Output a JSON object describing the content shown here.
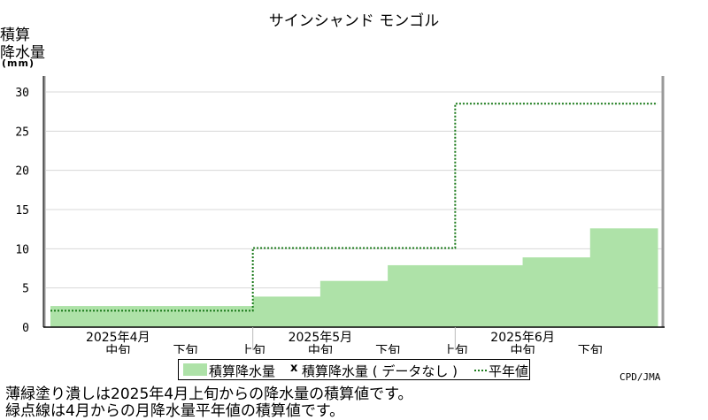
{
  "chart_data": {
    "type": "area",
    "title": "サインシャンド モンゴル",
    "ylabel_lines": [
      "積算",
      "降水量"
    ],
    "yunit": "(mm)",
    "ylim": [
      0,
      30
    ],
    "yticks": [
      0,
      5,
      10,
      15,
      20,
      25,
      30
    ],
    "grid": true,
    "periods": [
      "2025年4月上旬",
      "2025年4月中旬",
      "2025年4月下旬",
      "2025年5月上旬",
      "2025年5月中旬",
      "2025年5月下旬",
      "2025年6月上旬",
      "2025年6月中旬",
      "2025年6月下旬"
    ],
    "x_ticks": [
      {
        "top": "2025年4月",
        "bottom": "中旬"
      },
      {
        "top": "",
        "bottom": "下旬"
      },
      {
        "top": "",
        "bottom": "上旬"
      },
      {
        "top": "2025年5月",
        "bottom": "中旬"
      },
      {
        "top": "",
        "bottom": "下旬"
      },
      {
        "top": "",
        "bottom": "上旬"
      },
      {
        "top": "2025年6月",
        "bottom": "中旬"
      },
      {
        "top": "",
        "bottom": "下旬"
      }
    ],
    "series": [
      {
        "name": "積算降水量",
        "style": "filled-step",
        "color": "#aee2a8",
        "values": [
          2.7,
          2.7,
          2.7,
          3.9,
          5.9,
          7.9,
          7.9,
          8.9,
          12.6
        ]
      },
      {
        "name": "平年値",
        "style": "dotted-step",
        "color": "#1a7a1a",
        "monthly_steps": [
          {
            "month": "2025年4月",
            "value": 2.1
          },
          {
            "month": "2025年5月",
            "value": 10.1
          },
          {
            "month": "2025年6月",
            "value": 28.5
          }
        ]
      }
    ]
  },
  "legend": {
    "item1": "積算降水量",
    "item2_marker": "x",
    "item2": "積算降水量 ( データなし )",
    "item3": "平年値"
  },
  "credit": "CPD/JMA",
  "notes": [
    "薄緑塗り潰しは2025年4月上旬からの降水量の積算値です。",
    "緑点線は4月からの月降水量平年値の積算値です。"
  ],
  "colors": {
    "fill": "#aee2a8",
    "normal_line": "#1a7a1a",
    "grid": "#d8d8d8",
    "axis_frame": "#999999"
  }
}
